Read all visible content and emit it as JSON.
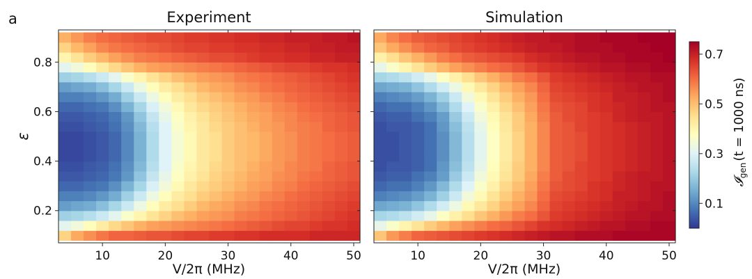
{
  "figure": {
    "panel_label": "a"
  },
  "chart_data": [
    {
      "type": "heatmap",
      "title": "Experiment",
      "xlabel": "V/2π (MHz)",
      "ylabel": "ε",
      "xlim": [
        3,
        51
      ],
      "ylim": [
        0.07,
        0.93
      ],
      "xticks": [
        10,
        20,
        30,
        40,
        50
      ],
      "yticks": [
        0.2,
        0.4,
        0.6,
        0.8
      ],
      "x": [
        4,
        6,
        8,
        10,
        12,
        14,
        16,
        18,
        20,
        22,
        24,
        26,
        28,
        30,
        32,
        34,
        36,
        38,
        40,
        42,
        44,
        46,
        48,
        50
      ],
      "y": [
        0.1,
        0.14,
        0.18,
        0.22,
        0.26,
        0.3,
        0.34,
        0.38,
        0.42,
        0.46,
        0.5,
        0.54,
        0.58,
        0.62,
        0.66,
        0.7,
        0.74,
        0.78,
        0.82,
        0.86,
        0.9
      ],
      "z": [
        [
          0.47,
          0.53,
          0.56,
          0.59,
          0.61,
          0.61,
          0.62,
          0.63,
          0.63,
          0.64,
          0.65,
          0.65,
          0.66,
          0.66,
          0.67,
          0.67,
          0.68,
          0.68,
          0.68,
          0.68,
          0.69,
          0.69,
          0.69,
          0.69
        ],
        [
          0.31,
          0.34,
          0.38,
          0.42,
          0.46,
          0.49,
          0.52,
          0.54,
          0.55,
          0.56,
          0.57,
          0.58,
          0.59,
          0.6,
          0.61,
          0.62,
          0.63,
          0.64,
          0.65,
          0.65,
          0.66,
          0.67,
          0.67,
          0.68
        ],
        [
          0.21,
          0.22,
          0.24,
          0.27,
          0.31,
          0.36,
          0.4,
          0.44,
          0.47,
          0.5,
          0.52,
          0.54,
          0.55,
          0.56,
          0.58,
          0.59,
          0.6,
          0.61,
          0.62,
          0.63,
          0.64,
          0.65,
          0.66,
          0.67
        ],
        [
          0.13,
          0.14,
          0.15,
          0.18,
          0.22,
          0.27,
          0.33,
          0.38,
          0.42,
          0.45,
          0.48,
          0.51,
          0.53,
          0.54,
          0.56,
          0.57,
          0.59,
          0.6,
          0.61,
          0.62,
          0.63,
          0.64,
          0.65,
          0.66
        ],
        [
          0.09,
          0.09,
          0.1,
          0.12,
          0.15,
          0.21,
          0.27,
          0.33,
          0.38,
          0.42,
          0.45,
          0.48,
          0.5,
          0.52,
          0.54,
          0.55,
          0.57,
          0.58,
          0.6,
          0.61,
          0.62,
          0.63,
          0.64,
          0.65
        ],
        [
          0.06,
          0.06,
          0.07,
          0.08,
          0.11,
          0.16,
          0.22,
          0.29,
          0.34,
          0.39,
          0.43,
          0.46,
          0.48,
          0.5,
          0.52,
          0.54,
          0.55,
          0.57,
          0.58,
          0.6,
          0.61,
          0.62,
          0.63,
          0.64
        ],
        [
          0.04,
          0.04,
          0.05,
          0.06,
          0.08,
          0.12,
          0.19,
          0.26,
          0.32,
          0.37,
          0.41,
          0.44,
          0.47,
          0.49,
          0.51,
          0.53,
          0.54,
          0.56,
          0.57,
          0.59,
          0.6,
          0.61,
          0.62,
          0.63
        ],
        [
          0.03,
          0.03,
          0.04,
          0.05,
          0.07,
          0.11,
          0.17,
          0.24,
          0.3,
          0.36,
          0.4,
          0.43,
          0.46,
          0.48,
          0.5,
          0.52,
          0.54,
          0.55,
          0.57,
          0.58,
          0.59,
          0.61,
          0.62,
          0.63
        ],
        [
          0.02,
          0.02,
          0.03,
          0.04,
          0.06,
          0.1,
          0.16,
          0.23,
          0.3,
          0.35,
          0.39,
          0.43,
          0.45,
          0.48,
          0.5,
          0.51,
          0.53,
          0.55,
          0.56,
          0.58,
          0.59,
          0.6,
          0.61,
          0.62
        ],
        [
          0.02,
          0.02,
          0.03,
          0.04,
          0.06,
          0.1,
          0.16,
          0.23,
          0.3,
          0.35,
          0.39,
          0.43,
          0.45,
          0.48,
          0.5,
          0.51,
          0.53,
          0.55,
          0.56,
          0.58,
          0.59,
          0.6,
          0.61,
          0.62
        ],
        [
          0.02,
          0.02,
          0.03,
          0.04,
          0.06,
          0.1,
          0.16,
          0.23,
          0.3,
          0.35,
          0.39,
          0.43,
          0.45,
          0.48,
          0.5,
          0.51,
          0.53,
          0.55,
          0.56,
          0.58,
          0.59,
          0.6,
          0.61,
          0.62
        ],
        [
          0.03,
          0.03,
          0.04,
          0.05,
          0.07,
          0.11,
          0.17,
          0.24,
          0.3,
          0.36,
          0.4,
          0.43,
          0.46,
          0.48,
          0.5,
          0.52,
          0.54,
          0.55,
          0.57,
          0.58,
          0.59,
          0.61,
          0.62,
          0.63
        ],
        [
          0.04,
          0.04,
          0.05,
          0.06,
          0.08,
          0.12,
          0.19,
          0.26,
          0.32,
          0.37,
          0.41,
          0.44,
          0.47,
          0.49,
          0.51,
          0.53,
          0.54,
          0.56,
          0.57,
          0.59,
          0.6,
          0.61,
          0.62,
          0.63
        ],
        [
          0.06,
          0.06,
          0.07,
          0.08,
          0.11,
          0.16,
          0.22,
          0.29,
          0.34,
          0.39,
          0.43,
          0.46,
          0.48,
          0.5,
          0.52,
          0.54,
          0.55,
          0.57,
          0.58,
          0.6,
          0.61,
          0.62,
          0.63,
          0.64
        ],
        [
          0.09,
          0.09,
          0.1,
          0.12,
          0.15,
          0.21,
          0.27,
          0.33,
          0.38,
          0.42,
          0.45,
          0.48,
          0.5,
          0.52,
          0.54,
          0.55,
          0.57,
          0.58,
          0.6,
          0.61,
          0.62,
          0.63,
          0.64,
          0.65
        ],
        [
          0.13,
          0.14,
          0.15,
          0.18,
          0.22,
          0.27,
          0.33,
          0.38,
          0.42,
          0.45,
          0.48,
          0.51,
          0.53,
          0.54,
          0.56,
          0.57,
          0.59,
          0.6,
          0.61,
          0.62,
          0.63,
          0.64,
          0.65,
          0.66
        ],
        [
          0.21,
          0.22,
          0.24,
          0.27,
          0.31,
          0.36,
          0.4,
          0.44,
          0.47,
          0.5,
          0.52,
          0.54,
          0.55,
          0.56,
          0.58,
          0.59,
          0.6,
          0.61,
          0.62,
          0.63,
          0.64,
          0.65,
          0.66,
          0.67
        ],
        [
          0.31,
          0.34,
          0.38,
          0.42,
          0.46,
          0.49,
          0.52,
          0.54,
          0.55,
          0.56,
          0.57,
          0.58,
          0.59,
          0.6,
          0.61,
          0.62,
          0.63,
          0.64,
          0.65,
          0.65,
          0.66,
          0.67,
          0.67,
          0.68
        ],
        [
          0.4,
          0.44,
          0.48,
          0.51,
          0.54,
          0.56,
          0.58,
          0.59,
          0.6,
          0.61,
          0.62,
          0.63,
          0.64,
          0.64,
          0.65,
          0.66,
          0.67,
          0.67,
          0.68,
          0.68,
          0.69,
          0.69,
          0.7,
          0.7
        ],
        [
          0.47,
          0.51,
          0.54,
          0.57,
          0.59,
          0.6,
          0.61,
          0.62,
          0.63,
          0.64,
          0.65,
          0.65,
          0.66,
          0.66,
          0.67,
          0.67,
          0.68,
          0.68,
          0.69,
          0.69,
          0.7,
          0.7,
          0.71,
          0.71
        ],
        [
          0.52,
          0.55,
          0.58,
          0.6,
          0.61,
          0.62,
          0.63,
          0.64,
          0.64,
          0.65,
          0.66,
          0.66,
          0.67,
          0.67,
          0.68,
          0.68,
          0.69,
          0.69,
          0.7,
          0.7,
          0.7,
          0.71,
          0.71,
          0.72
        ]
      ]
    },
    {
      "type": "heatmap",
      "title": "Simulation",
      "xlabel": "V/2π (MHz)",
      "ylabel": "",
      "xlim": [
        3,
        51
      ],
      "ylim": [
        0.07,
        0.93
      ],
      "xticks": [
        10,
        20,
        30,
        40,
        50
      ],
      "yticks": [
        0.2,
        0.4,
        0.6,
        0.8
      ],
      "x": [
        4,
        6,
        8,
        10,
        12,
        14,
        16,
        18,
        20,
        22,
        24,
        26,
        28,
        30,
        32,
        34,
        36,
        38,
        40,
        42,
        44,
        46,
        48,
        50
      ],
      "y": [
        0.1,
        0.14,
        0.18,
        0.22,
        0.26,
        0.3,
        0.34,
        0.38,
        0.42,
        0.46,
        0.5,
        0.54,
        0.58,
        0.62,
        0.66,
        0.7,
        0.74,
        0.78,
        0.82,
        0.86,
        0.9
      ],
      "z": [
        [
          0.49,
          0.55,
          0.58,
          0.61,
          0.62,
          0.63,
          0.64,
          0.65,
          0.66,
          0.67,
          0.68,
          0.69,
          0.7,
          0.71,
          0.72,
          0.72,
          0.73,
          0.73,
          0.73,
          0.74,
          0.74,
          0.74,
          0.74,
          0.74
        ],
        [
          0.32,
          0.36,
          0.4,
          0.44,
          0.48,
          0.51,
          0.54,
          0.56,
          0.58,
          0.6,
          0.61,
          0.63,
          0.65,
          0.67,
          0.68,
          0.69,
          0.7,
          0.71,
          0.72,
          0.72,
          0.73,
          0.73,
          0.74,
          0.74
        ],
        [
          0.22,
          0.23,
          0.25,
          0.28,
          0.32,
          0.37,
          0.41,
          0.45,
          0.49,
          0.52,
          0.55,
          0.58,
          0.6,
          0.63,
          0.66,
          0.67,
          0.68,
          0.69,
          0.7,
          0.71,
          0.72,
          0.72,
          0.73,
          0.73
        ],
        [
          0.14,
          0.15,
          0.16,
          0.19,
          0.23,
          0.28,
          0.33,
          0.39,
          0.43,
          0.47,
          0.51,
          0.54,
          0.57,
          0.61,
          0.65,
          0.66,
          0.67,
          0.68,
          0.69,
          0.7,
          0.71,
          0.72,
          0.72,
          0.73
        ],
        [
          0.09,
          0.1,
          0.11,
          0.13,
          0.16,
          0.21,
          0.27,
          0.34,
          0.39,
          0.44,
          0.48,
          0.52,
          0.55,
          0.6,
          0.64,
          0.65,
          0.66,
          0.67,
          0.68,
          0.7,
          0.7,
          0.71,
          0.72,
          0.73
        ],
        [
          0.06,
          0.07,
          0.07,
          0.09,
          0.12,
          0.17,
          0.23,
          0.3,
          0.36,
          0.41,
          0.46,
          0.5,
          0.54,
          0.59,
          0.63,
          0.64,
          0.65,
          0.67,
          0.68,
          0.69,
          0.7,
          0.71,
          0.72,
          0.72
        ],
        [
          0.04,
          0.05,
          0.05,
          0.07,
          0.09,
          0.13,
          0.2,
          0.27,
          0.34,
          0.39,
          0.44,
          0.48,
          0.53,
          0.58,
          0.62,
          0.64,
          0.65,
          0.66,
          0.67,
          0.69,
          0.7,
          0.71,
          0.71,
          0.72
        ],
        [
          0.03,
          0.04,
          0.04,
          0.05,
          0.07,
          0.12,
          0.18,
          0.25,
          0.32,
          0.38,
          0.43,
          0.48,
          0.52,
          0.57,
          0.62,
          0.63,
          0.65,
          0.66,
          0.67,
          0.68,
          0.69,
          0.7,
          0.71,
          0.72
        ],
        [
          0.03,
          0.03,
          0.04,
          0.05,
          0.07,
          0.11,
          0.17,
          0.24,
          0.31,
          0.37,
          0.42,
          0.47,
          0.52,
          0.57,
          0.62,
          0.63,
          0.64,
          0.66,
          0.67,
          0.68,
          0.69,
          0.7,
          0.71,
          0.72
        ],
        [
          0.03,
          0.03,
          0.04,
          0.05,
          0.07,
          0.11,
          0.17,
          0.24,
          0.31,
          0.37,
          0.42,
          0.47,
          0.52,
          0.57,
          0.62,
          0.63,
          0.64,
          0.66,
          0.67,
          0.68,
          0.69,
          0.7,
          0.71,
          0.72
        ],
        [
          0.03,
          0.03,
          0.04,
          0.05,
          0.07,
          0.11,
          0.17,
          0.24,
          0.31,
          0.37,
          0.42,
          0.47,
          0.52,
          0.57,
          0.62,
          0.63,
          0.64,
          0.66,
          0.67,
          0.68,
          0.69,
          0.7,
          0.71,
          0.72
        ],
        [
          0.03,
          0.04,
          0.04,
          0.05,
          0.07,
          0.12,
          0.18,
          0.25,
          0.32,
          0.38,
          0.43,
          0.48,
          0.52,
          0.57,
          0.62,
          0.63,
          0.65,
          0.66,
          0.67,
          0.68,
          0.69,
          0.7,
          0.71,
          0.72
        ],
        [
          0.04,
          0.05,
          0.05,
          0.07,
          0.09,
          0.13,
          0.2,
          0.27,
          0.34,
          0.39,
          0.44,
          0.48,
          0.53,
          0.58,
          0.62,
          0.64,
          0.65,
          0.66,
          0.67,
          0.69,
          0.7,
          0.71,
          0.71,
          0.72
        ],
        [
          0.06,
          0.07,
          0.07,
          0.09,
          0.12,
          0.17,
          0.23,
          0.3,
          0.36,
          0.41,
          0.46,
          0.5,
          0.54,
          0.59,
          0.63,
          0.64,
          0.65,
          0.67,
          0.68,
          0.69,
          0.7,
          0.71,
          0.72,
          0.72
        ],
        [
          0.09,
          0.1,
          0.11,
          0.13,
          0.16,
          0.21,
          0.27,
          0.34,
          0.39,
          0.44,
          0.48,
          0.52,
          0.55,
          0.6,
          0.64,
          0.65,
          0.66,
          0.67,
          0.68,
          0.7,
          0.7,
          0.71,
          0.72,
          0.73
        ],
        [
          0.14,
          0.15,
          0.16,
          0.19,
          0.23,
          0.28,
          0.33,
          0.39,
          0.43,
          0.47,
          0.51,
          0.54,
          0.57,
          0.61,
          0.65,
          0.66,
          0.67,
          0.68,
          0.69,
          0.7,
          0.71,
          0.72,
          0.72,
          0.73
        ],
        [
          0.22,
          0.23,
          0.25,
          0.28,
          0.32,
          0.37,
          0.41,
          0.45,
          0.49,
          0.52,
          0.55,
          0.58,
          0.6,
          0.63,
          0.66,
          0.67,
          0.68,
          0.69,
          0.7,
          0.71,
          0.72,
          0.72,
          0.73,
          0.73
        ],
        [
          0.32,
          0.36,
          0.4,
          0.44,
          0.48,
          0.51,
          0.54,
          0.56,
          0.58,
          0.6,
          0.61,
          0.63,
          0.65,
          0.67,
          0.68,
          0.69,
          0.7,
          0.71,
          0.72,
          0.72,
          0.73,
          0.73,
          0.74,
          0.74
        ],
        [
          0.41,
          0.45,
          0.49,
          0.52,
          0.55,
          0.58,
          0.6,
          0.62,
          0.63,
          0.64,
          0.65,
          0.66,
          0.68,
          0.69,
          0.7,
          0.71,
          0.72,
          0.72,
          0.73,
          0.73,
          0.74,
          0.74,
          0.74,
          0.75
        ],
        [
          0.49,
          0.53,
          0.56,
          0.59,
          0.61,
          0.62,
          0.64,
          0.65,
          0.66,
          0.67,
          0.68,
          0.69,
          0.7,
          0.71,
          0.71,
          0.72,
          0.73,
          0.73,
          0.73,
          0.74,
          0.74,
          0.74,
          0.75,
          0.75
        ],
        [
          0.53,
          0.57,
          0.6,
          0.62,
          0.63,
          0.64,
          0.65,
          0.66,
          0.67,
          0.68,
          0.69,
          0.7,
          0.71,
          0.71,
          0.72,
          0.72,
          0.73,
          0.73,
          0.74,
          0.74,
          0.74,
          0.75,
          0.75,
          0.75
        ]
      ]
    }
  ],
  "colorbar": {
    "label_prefix": "𝓘",
    "label_sub": "gen",
    "label_rest": "(t = 1000 ns)",
    "ticks": [
      0.1,
      0.3,
      0.5,
      0.7
    ],
    "range": [
      0,
      0.75
    ],
    "colormap": "RdYlBu_r",
    "colors": [
      "#313695",
      "#4575b4",
      "#74add1",
      "#abd9e9",
      "#e0f3f8",
      "#ffffbf",
      "#fee090",
      "#fdae61",
      "#f46d43",
      "#d73027",
      "#a50026"
    ]
  }
}
